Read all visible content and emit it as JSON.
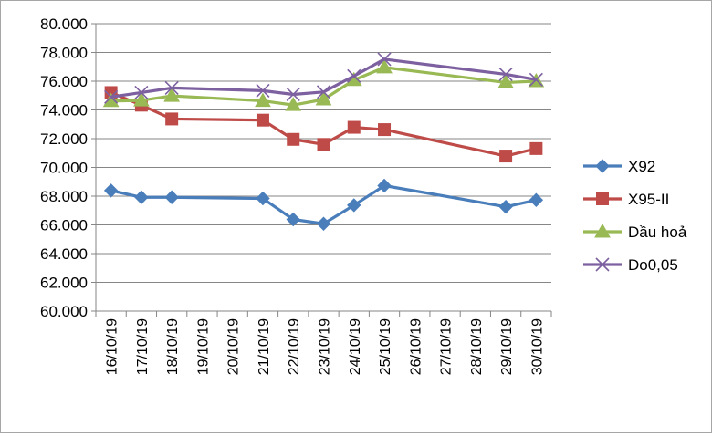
{
  "chart_data": {
    "type": "line",
    "title": "",
    "xlabel": "",
    "ylabel": "",
    "ylim": [
      60000,
      80000
    ],
    "yticks": [
      "60.000",
      "62.000",
      "64.000",
      "66.000",
      "68.000",
      "70.000",
      "72.000",
      "74.000",
      "76.000",
      "78.000",
      "80.000"
    ],
    "categories": [
      "16/10/19",
      "17/10/19",
      "18/10/19",
      "19/10/19",
      "20/10/19",
      "21/10/19",
      "22/10/19",
      "23/10/19",
      "24/10/19",
      "25/10/19",
      "26/10/19",
      "27/10/19",
      "28/10/19",
      "29/10/19",
      "30/10/19"
    ],
    "grid": "horizontal",
    "legend_position": "right",
    "series": [
      {
        "name": "X92",
        "color": "#4a7ebb",
        "marker": "diamond",
        "values": [
          68390,
          67920,
          67920,
          null,
          null,
          67840,
          66380,
          66080,
          67370,
          68730,
          null,
          null,
          null,
          67260,
          67730
        ]
      },
      {
        "name": "X95-II",
        "color": "#be4b48",
        "marker": "square",
        "values": [
          75210,
          74330,
          73370,
          null,
          null,
          73290,
          71950,
          71600,
          72790,
          72630,
          null,
          null,
          null,
          70790,
          71310
        ]
      },
      {
        "name": "Dầu hoả",
        "color": "#98b954",
        "marker": "triangle",
        "values": [
          74620,
          74660,
          74980,
          null,
          null,
          74630,
          74340,
          74730,
          76080,
          76960,
          null,
          null,
          null,
          75910,
          76000
        ]
      },
      {
        "name": "Do0,05",
        "color": "#7d60a0",
        "marker": "x",
        "values": [
          74900,
          75210,
          75530,
          null,
          null,
          75340,
          75080,
          75250,
          76360,
          77530,
          null,
          null,
          null,
          76480,
          76110
        ]
      }
    ]
  }
}
